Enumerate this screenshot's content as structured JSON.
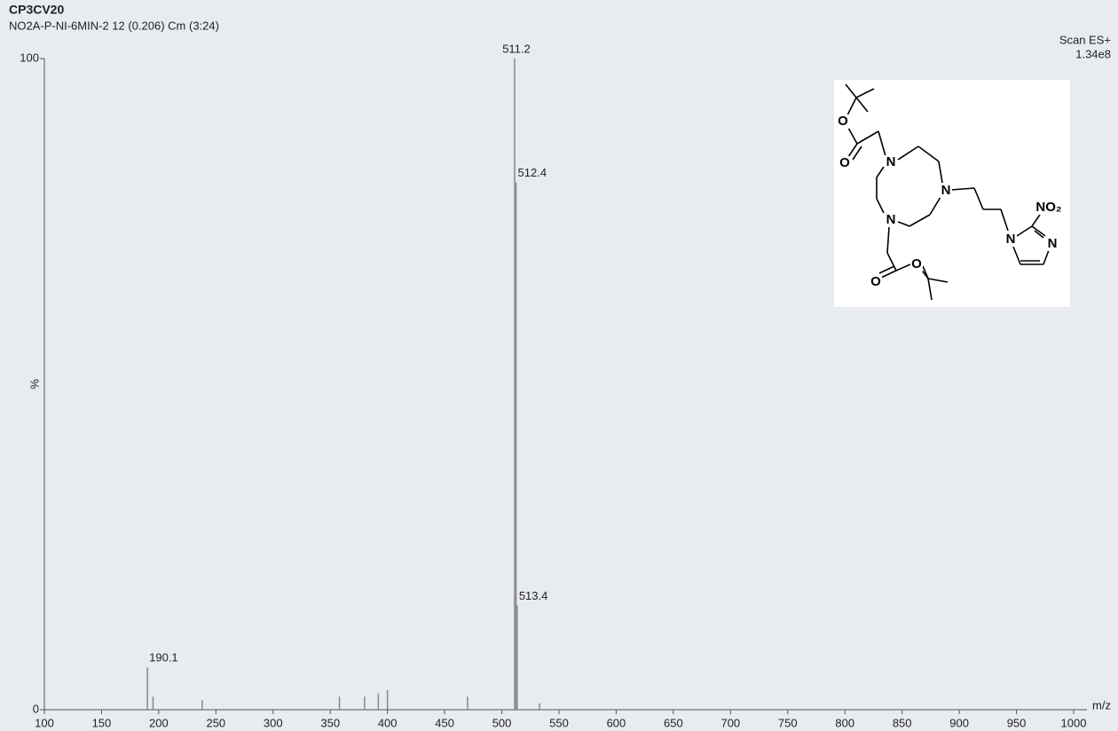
{
  "chart_data": {
    "type": "bar",
    "title": "CP3CV20",
    "subtitle": "NO2A-P-NI-6MIN-2 12 (0.206) Cm (3:24)",
    "scan_mode": "Scan ES+",
    "intensity": "1.34e8",
    "y_label": "%",
    "x_label": "m/z",
    "x": [
      190.1,
      195,
      238,
      358,
      380,
      392,
      400,
      470,
      511.2,
      512.4,
      513.4,
      533
    ],
    "values": [
      6.5,
      2,
      1.5,
      2,
      2,
      2.5,
      3,
      2,
      100,
      81,
      16,
      1
    ],
    "labeled": [
      true,
      false,
      false,
      false,
      false,
      false,
      false,
      false,
      true,
      true,
      true,
      false
    ],
    "color": "#888888",
    "xlim": [
      100,
      1000
    ],
    "xticks": [
      100,
      150,
      200,
      250,
      300,
      350,
      400,
      450,
      500,
      550,
      600,
      650,
      700,
      750,
      800,
      850,
      900,
      950,
      1000
    ],
    "ylim": [
      0,
      100
    ],
    "yticks": [
      0,
      100
    ]
  },
  "inset": {
    "atoms": [
      "O",
      "O",
      "N",
      "N",
      "N",
      "N",
      "NO₂",
      "N",
      "O",
      "O"
    ]
  }
}
